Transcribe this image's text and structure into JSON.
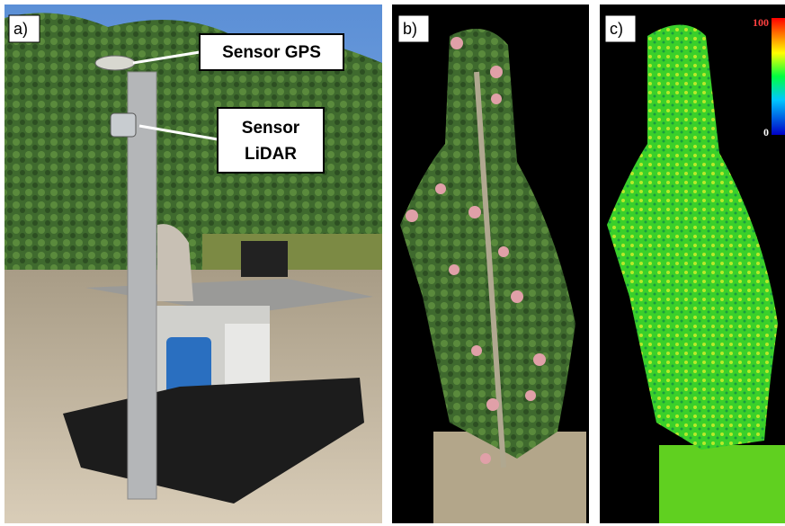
{
  "panels": [
    {
      "label": "a)"
    },
    {
      "label": "b)"
    },
    {
      "label": "c)"
    }
  ],
  "callouts": [
    {
      "lines": [
        "Sensor GPS"
      ]
    },
    {
      "lines": [
        "Sensor",
        "LiDAR"
      ]
    }
  ],
  "colorbar": {
    "max": 100,
    "min": 0
  }
}
